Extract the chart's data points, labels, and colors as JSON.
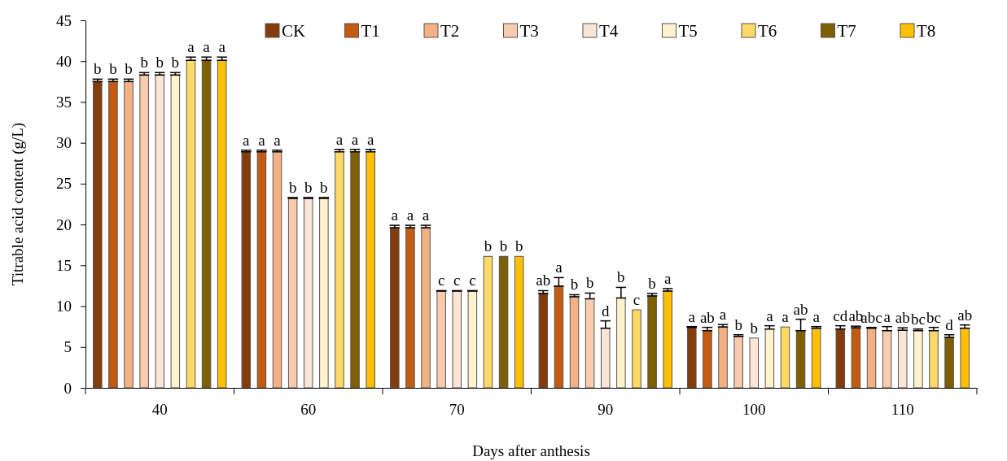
{
  "chart_data": {
    "type": "bar",
    "xlabel": "Days after anthesis",
    "ylabel": "Titrable acid content (g/L)",
    "categories": [
      "40",
      "60",
      "70",
      "90",
      "100",
      "110"
    ],
    "ylim": [
      0,
      45
    ],
    "yticks": [
      0,
      5,
      10,
      15,
      20,
      25,
      30,
      35,
      40,
      45
    ],
    "grid": false,
    "legend": "top right",
    "series": [
      {
        "name": "CK",
        "color": "#843c0c",
        "values": [
          37.5,
          28.9,
          19.6,
          11.55,
          7.4,
          7.2
        ],
        "errors": [
          [
            37.5,
            37.8
          ],
          [
            28.9,
            29.1
          ],
          [
            19.6,
            19.9
          ],
          [
            11.55,
            11.9
          ],
          [
            7.4,
            7.5
          ],
          [
            7.2,
            7.6
          ]
        ],
        "value_labels": [
          "b",
          "a",
          "a",
          "ab",
          "a",
          "cd"
        ]
      },
      {
        "name": "T1",
        "color": "#c55a11",
        "values": [
          37.5,
          28.9,
          19.6,
          12.45,
          7.0,
          7.35
        ],
        "errors": [
          [
            37.5,
            37.8
          ],
          [
            28.9,
            29.1
          ],
          [
            19.6,
            19.9
          ],
          [
            12.45,
            13.5
          ],
          [
            7.0,
            7.4
          ],
          [
            7.35,
            7.55
          ]
        ],
        "value_labels": [
          "b",
          "a",
          "a",
          "a",
          "ab",
          "ab"
        ]
      },
      {
        "name": "T2",
        "color": "#f4b183",
        "values": [
          37.5,
          28.9,
          19.6,
          11.15,
          7.45,
          7.3
        ],
        "errors": [
          [
            37.5,
            37.8
          ],
          [
            28.9,
            29.1
          ],
          [
            19.6,
            19.9
          ],
          [
            11.15,
            11.4
          ],
          [
            7.45,
            7.75
          ],
          [
            7.3,
            7.4
          ]
        ],
        "value_labels": [
          "b",
          "a",
          "a",
          "b",
          "a",
          "abc"
        ]
      },
      {
        "name": "T3",
        "color": "#f8cbad",
        "values": [
          38.3,
          23.2,
          11.85,
          10.9,
          6.3,
          7.0
        ],
        "errors": [
          [
            38.3,
            38.6
          ],
          [
            23.2,
            23.3
          ],
          [
            11.85,
            11.9
          ],
          [
            10.9,
            11.6
          ],
          [
            6.3,
            6.5
          ],
          [
            7.0,
            7.5
          ]
        ],
        "value_labels": [
          "b",
          "b",
          "c",
          "b",
          "b",
          "a"
        ]
      },
      {
        "name": "T4",
        "color": "#fbe5d6",
        "values": [
          38.3,
          23.2,
          11.85,
          7.3,
          6.1,
          7.05
        ],
        "errors": [
          [
            38.3,
            38.6
          ],
          [
            23.2,
            23.3
          ],
          [
            11.85,
            11.9
          ],
          [
            7.3,
            8.2
          ],
          null,
          [
            7.05,
            7.35
          ]
        ],
        "value_labels": [
          "b",
          "b",
          "c",
          "d",
          "b",
          "ab"
        ]
      },
      {
        "name": "T5",
        "color": "#fff2cc",
        "values": [
          38.3,
          23.2,
          11.85,
          11.0,
          7.2,
          7.0
        ],
        "errors": [
          [
            38.3,
            38.6
          ],
          [
            23.2,
            23.3
          ],
          [
            11.85,
            11.9
          ],
          [
            11.0,
            12.3
          ],
          [
            7.2,
            7.6
          ],
          [
            7.0,
            7.2
          ]
        ],
        "value_labels": [
          "b",
          "b",
          "c",
          "b",
          "a",
          "bc"
        ]
      },
      {
        "name": "T6",
        "color": "#ffd966",
        "values": [
          40.1,
          28.9,
          16.1,
          9.55,
          7.45,
          7.0
        ],
        "errors": [
          [
            40.1,
            40.5
          ],
          [
            28.9,
            29.2
          ],
          null,
          null,
          null,
          [
            7.0,
            7.4
          ]
        ],
        "value_labels": [
          "a",
          "a",
          "b",
          "c",
          "a",
          "bc"
        ]
      },
      {
        "name": "T7",
        "color": "#7f6000",
        "values": [
          40.1,
          28.9,
          16.1,
          11.25,
          7.0,
          6.2
        ],
        "errors": [
          [
            40.1,
            40.5
          ],
          [
            28.9,
            29.2
          ],
          null,
          [
            11.25,
            11.55
          ],
          [
            7.0,
            8.4
          ],
          [
            6.2,
            6.5
          ]
        ],
        "value_labels": [
          "a",
          "a",
          "b",
          "b",
          "ab",
          "d"
        ]
      },
      {
        "name": "T8",
        "color": "#ffc000",
        "values": [
          40.1,
          28.9,
          16.1,
          11.85,
          7.3,
          7.3
        ],
        "errors": [
          [
            40.1,
            40.5
          ],
          [
            28.9,
            29.2
          ],
          null,
          [
            11.85,
            12.15
          ],
          [
            7.3,
            7.5
          ],
          [
            7.3,
            7.7
          ]
        ],
        "value_labels": [
          "a",
          "a",
          "b",
          "a",
          "a",
          "ab"
        ]
      }
    ]
  }
}
